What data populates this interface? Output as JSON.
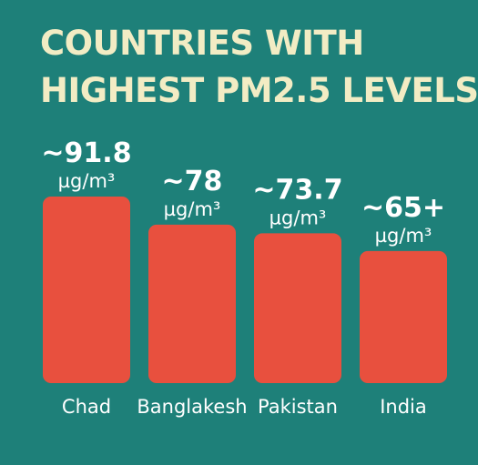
{
  "title": {
    "line1": "COUNTRIES WITH",
    "line2": "HIGHEST PM2.5 LEVELS"
  },
  "colors": {
    "background": "#1e8079",
    "bar": "#e8503e",
    "title": "#f2ecc4",
    "text": "#ffffff"
  },
  "chart_data": {
    "type": "bar",
    "title": "COUNTRIES WITH HIGHEST PM2.5 LEVELS",
    "categories": [
      "Chad",
      "Banglakesh",
      "Pakistan",
      "India"
    ],
    "values": [
      91.8,
      78,
      73.7,
      65
    ],
    "value_labels": [
      "~91.8",
      "~78",
      "~73.7",
      "~65+"
    ],
    "unit_label": "µg/m³",
    "xlabel": "",
    "ylabel": "",
    "ylim": [
      0,
      91.8
    ],
    "grid": false,
    "legend": "none"
  }
}
